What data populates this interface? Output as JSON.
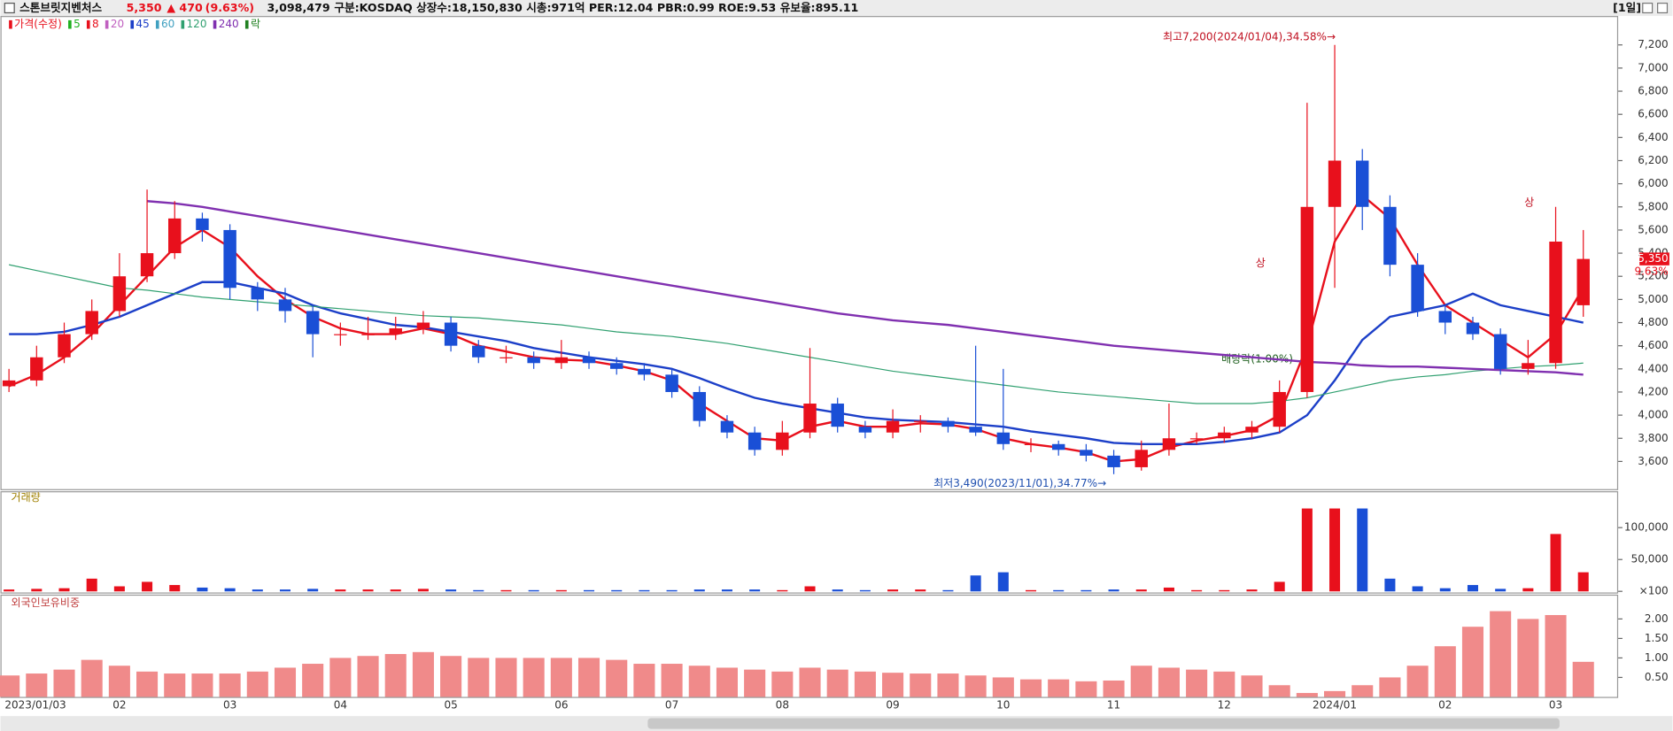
{
  "header": {
    "name": "스톤브릿지벤처스",
    "price": "5,350",
    "change": "▲ 470",
    "change_pct": "(9.63%)",
    "volume": "3,098,479",
    "info": "구분:KOSDAQ 상장수:18,150,830 시총:971억 PER:12.04 PBR:0.99 ROE:9.53 유보율:895.11",
    "period": "[1일]"
  },
  "chart_data": [
    {
      "type": "candlestick",
      "categories": [
        "2023/01/03",
        null,
        null,
        null,
        "02",
        null,
        null,
        null,
        "03",
        null,
        null,
        null,
        "04",
        null,
        null,
        null,
        "05",
        null,
        null,
        null,
        "06",
        null,
        null,
        null,
        "07",
        null,
        null,
        null,
        "08",
        null,
        null,
        null,
        "09",
        null,
        null,
        null,
        "10",
        null,
        null,
        null,
        "11",
        null,
        null,
        null,
        "12",
        null,
        null,
        null,
        "2024/01",
        null,
        null,
        null,
        "02",
        null,
        null,
        null,
        "03",
        null
      ],
      "open": [
        4250,
        4300,
        4500,
        4700,
        4900,
        5200,
        5400,
        5700,
        5600,
        5100,
        5000,
        4900,
        4700,
        4700,
        4700,
        4750,
        4800,
        4600,
        4500,
        4500,
        4450,
        4500,
        4450,
        4400,
        4350,
        4200,
        3950,
        3850,
        3700,
        3850,
        4100,
        3900,
        3850,
        3950,
        3950,
        3900,
        3850,
        3750,
        3750,
        3700,
        3650,
        3550,
        3700,
        3800,
        3800,
        3850,
        3900,
        4200,
        5800,
        6200,
        5800,
        5300,
        4900,
        4800,
        4700,
        4400,
        4450,
        4950
      ],
      "high": [
        4400,
        4600,
        4800,
        5000,
        5400,
        5950,
        5850,
        5750,
        5650,
        5150,
        5100,
        4950,
        4800,
        4850,
        4850,
        4900,
        4850,
        4650,
        4600,
        4550,
        4650,
        4550,
        4500,
        4450,
        4400,
        4250,
        4000,
        3900,
        3950,
        4580,
        4150,
        3950,
        4050,
        4000,
        3980,
        4600,
        4400,
        3800,
        3780,
        3750,
        3700,
        3780,
        4100,
        3850,
        3900,
        3950,
        4300,
        6700,
        7200,
        6300,
        5900,
        5400,
        4950,
        4850,
        4750,
        4650,
        5800,
        5600
      ],
      "low": [
        4200,
        4250,
        4450,
        4650,
        4850,
        5150,
        5350,
        5500,
        5000,
        4900,
        4800,
        4500,
        4600,
        4650,
        4650,
        4700,
        4550,
        4450,
        4450,
        4400,
        4400,
        4400,
        4350,
        4300,
        4150,
        3900,
        3800,
        3650,
        3650,
        3800,
        3850,
        3800,
        3800,
        3850,
        3850,
        3820,
        3700,
        3680,
        3650,
        3600,
        3490,
        3520,
        3650,
        3750,
        3760,
        3800,
        3850,
        4150,
        5100,
        5600,
        5200,
        4850,
        4700,
        4650,
        4350,
        4350,
        4400,
        4850
      ],
      "close": [
        4300,
        4500,
        4700,
        4900,
        5200,
        5400,
        5700,
        5600,
        5100,
        5000,
        4900,
        4700,
        4700,
        4700,
        4750,
        4800,
        4600,
        4500,
        4500,
        4450,
        4500,
        4450,
        4400,
        4350,
        4200,
        3950,
        3850,
        3700,
        3850,
        4100,
        3900,
        3850,
        3950,
        3950,
        3900,
        3850,
        3750,
        3750,
        3700,
        3650,
        3550,
        3700,
        3800,
        3800,
        3850,
        3900,
        4200,
        5800,
        6200,
        5800,
        5300,
        4900,
        4800,
        4700,
        4400,
        4450,
        5500,
        5350
      ],
      "up_color": "#e8101c",
      "down_color": "#1a4fd6",
      "series": [
        {
          "name": "가격(수정)",
          "color": "#e8101c"
        },
        {
          "name": "5",
          "color": "#20b020"
        },
        {
          "name": "8",
          "color": "#e8101c",
          "values": [
            4250,
            4350,
            4500,
            4700,
            4950,
            5200,
            5450,
            5600,
            5450,
            5200,
            5000,
            4850,
            4750,
            4700,
            4700,
            4750,
            4700,
            4600,
            4550,
            4500,
            4480,
            4470,
            4430,
            4380,
            4300,
            4100,
            3950,
            3800,
            3780,
            3900,
            3950,
            3900,
            3900,
            3930,
            3920,
            3880,
            3800,
            3750,
            3720,
            3680,
            3600,
            3620,
            3720,
            3780,
            3820,
            3870,
            4000,
            4600,
            5500,
            5900,
            5700,
            5300,
            4950,
            4800,
            4650,
            4500,
            4700,
            5100
          ]
        },
        {
          "name": "20",
          "color": "#c060c0"
        },
        {
          "name": "45",
          "color": "#1c3fc8",
          "values": [
            4700,
            4700,
            4720,
            4780,
            4850,
            4950,
            5050,
            5150,
            5150,
            5100,
            5050,
            4950,
            4880,
            4830,
            4780,
            4760,
            4720,
            4680,
            4640,
            4580,
            4540,
            4500,
            4470,
            4440,
            4400,
            4320,
            4230,
            4150,
            4100,
            4060,
            4020,
            3980,
            3960,
            3950,
            3940,
            3920,
            3900,
            3860,
            3830,
            3800,
            3760,
            3750,
            3750,
            3750,
            3770,
            3800,
            3850,
            4000,
            4300,
            4650,
            4850,
            4900,
            4950,
            5050,
            4950,
            4900,
            4850,
            4800
          ]
        },
        {
          "name": "60",
          "color": "#40a0c0"
        },
        {
          "name": "120",
          "color": "#30a070",
          "values": [
            5300,
            5250,
            5200,
            5150,
            5100,
            5080,
            5050,
            5020,
            5000,
            4980,
            4960,
            4940,
            4920,
            4900,
            4880,
            4860,
            4850,
            4840,
            4820,
            4800,
            4780,
            4750,
            4720,
            4700,
            4680,
            4650,
            4620,
            4580,
            4540,
            4500,
            4460,
            4420,
            4380,
            4350,
            4320,
            4290,
            4260,
            4230,
            4200,
            4180,
            4160,
            4140,
            4120,
            4100,
            4100,
            4100,
            4120,
            4150,
            4200,
            4250,
            4300,
            4330,
            4350,
            4380,
            4400,
            4420,
            4430,
            4450
          ]
        },
        {
          "name": "240",
          "color": "#8030b0",
          "values": [
            null,
            null,
            null,
            null,
            null,
            5850,
            5830,
            5800,
            5760,
            5720,
            5680,
            5640,
            5600,
            5560,
            5520,
            5480,
            5440,
            5400,
            5360,
            5320,
            5280,
            5240,
            5200,
            5160,
            5120,
            5080,
            5040,
            5000,
            4960,
            4920,
            4880,
            4850,
            4820,
            4800,
            4780,
            4750,
            4720,
            4690,
            4660,
            4630,
            4600,
            4580,
            4560,
            4540,
            4520,
            4500,
            4480,
            4460,
            4450,
            4430,
            4420,
            4420,
            4410,
            4400,
            4390,
            4380,
            4370,
            4350
          ]
        },
        {
          "name": "락",
          "color": "#208020"
        }
      ],
      "ylim": [
        3370,
        7450
      ],
      "yticks": [
        {
          "value": 3600,
          "label": "3,600"
        },
        {
          "value": 3800,
          "label": "3,800"
        },
        {
          "value": 4000,
          "label": "4,000"
        },
        {
          "value": 4200,
          "label": "4,200"
        },
        {
          "value": 4400,
          "label": "4,400"
        },
        {
          "value": 4600,
          "label": "4,600"
        },
        {
          "value": 4800,
          "label": "4,800"
        },
        {
          "value": 5000,
          "label": "5,000"
        },
        {
          "value": 5200,
          "label": "5,200"
        },
        {
          "value": 5400,
          "label": "5,400"
        },
        {
          "value": 5600,
          "label": "5,600"
        },
        {
          "value": 5800,
          "label": "5,800"
        },
        {
          "value": 6000,
          "label": "6,000"
        },
        {
          "value": 6200,
          "label": "6,200"
        },
        {
          "value": 6400,
          "label": "6,400"
        },
        {
          "value": 6600,
          "label": "6,600"
        },
        {
          "value": 6800,
          "label": "6,800"
        },
        {
          "value": 7000,
          "label": "7,000"
        },
        {
          "value": 7200,
          "label": "7,200"
        }
      ],
      "annotations": [
        "최고7,200(2024/01/04),34.58%→",
        "최저3,490(2023/11/01),34.77%→",
        "배당락(1.00%)",
        "상",
        "상"
      ],
      "last_price_label": "5,350",
      "last_change_label": "9.63%"
    },
    {
      "type": "bar",
      "title": "거래량",
      "values": [
        3000,
        4000,
        5000,
        20000,
        8000,
        15000,
        10000,
        6000,
        5000,
        3000,
        3000,
        4000,
        3000,
        3000,
        3000,
        4000,
        3000,
        2000,
        2000,
        2000,
        2000,
        2000,
        2000,
        2000,
        2000,
        3000,
        3000,
        3000,
        2000,
        8000,
        3000,
        2000,
        3000,
        3000,
        2000,
        25000,
        30000,
        2000,
        2000,
        2000,
        3000,
        3000,
        6000,
        2000,
        2000,
        3000,
        15000,
        130000,
        130000,
        130000,
        20000,
        8000,
        5000,
        10000,
        4000,
        5000,
        90000,
        30000
      ],
      "ylim": [
        0,
        142000
      ],
      "yticks": [
        {
          "value": 100,
          "label": "×100"
        },
        {
          "value": 50000,
          "label": "50,000"
        },
        {
          "value": 100000,
          "label": "100,000"
        }
      ]
    },
    {
      "type": "bar",
      "title": "외국인보유비중",
      "color": "#f08a8a",
      "values": [
        0.55,
        0.6,
        0.7,
        0.95,
        0.8,
        0.65,
        0.6,
        0.6,
        0.6,
        0.65,
        0.75,
        0.85,
        1.0,
        1.05,
        1.1,
        1.15,
        1.05,
        1.0,
        1.0,
        1.0,
        1.0,
        1.0,
        0.95,
        0.85,
        0.85,
        0.8,
        0.75,
        0.7,
        0.65,
        0.75,
        0.7,
        0.65,
        0.62,
        0.6,
        0.6,
        0.55,
        0.5,
        0.45,
        0.45,
        0.4,
        0.42,
        0.8,
        0.75,
        0.7,
        0.65,
        0.55,
        0.3,
        0.1,
        0.15,
        0.3,
        0.5,
        0.8,
        1.3,
        1.8,
        2.2,
        2.0,
        2.1,
        0.9
      ],
      "ylim": [
        0,
        2.57
      ],
      "yticks": [
        {
          "value": 0.5,
          "label": "0.50"
        },
        {
          "value": 1,
          "label": "1.00"
        },
        {
          "value": 1.5,
          "label": "1.50"
        },
        {
          "value": 2,
          "label": "2.00"
        }
      ]
    }
  ]
}
